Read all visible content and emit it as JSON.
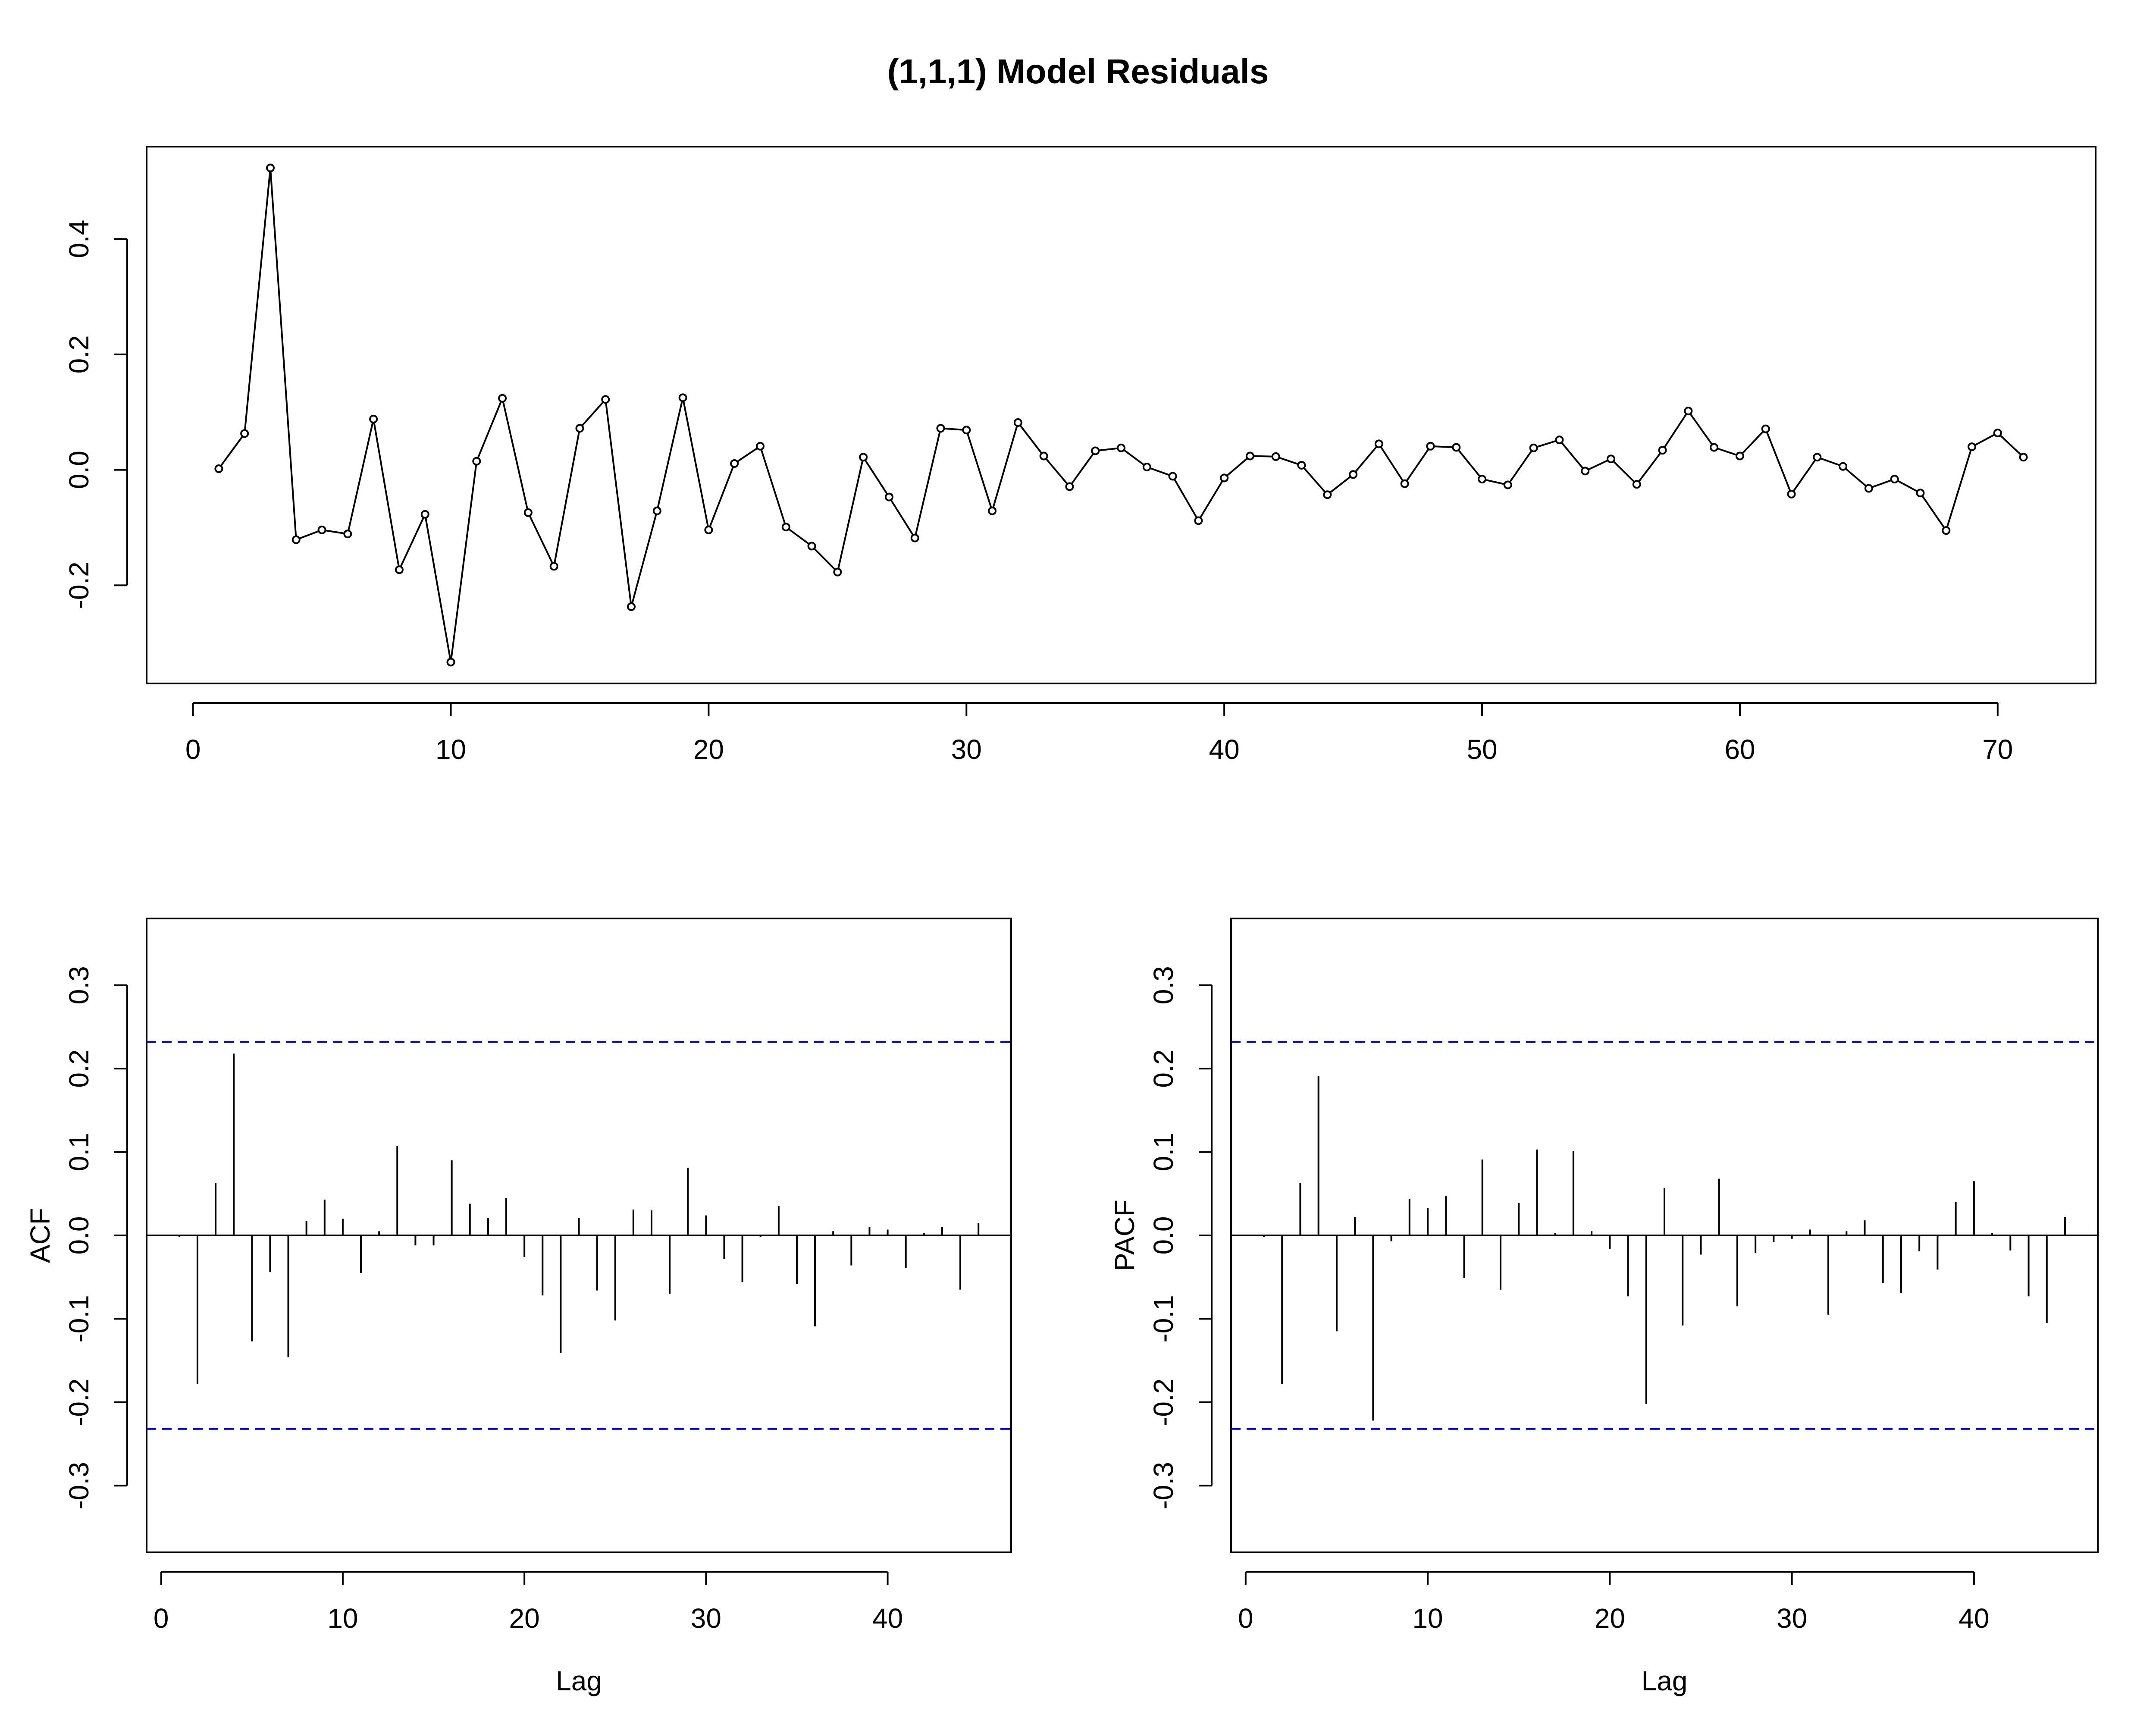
{
  "title": "(1,1,1) Model Residuals",
  "colors": {
    "ink": "#000000",
    "confidence": "#0000cc",
    "background": "#ffffff"
  },
  "chart_data": [
    {
      "id": "residuals",
      "type": "line",
      "markers": "open-circle",
      "title": "",
      "xlabel": "",
      "ylabel": "",
      "xlim": [
        -1.8,
        73.8
      ],
      "ylim": [
        -0.37,
        0.56
      ],
      "xticks": [
        0,
        10,
        20,
        30,
        40,
        50,
        60,
        70
      ],
      "yticks": [
        -0.2,
        0.0,
        0.2,
        0.4
      ],
      "ytick_labels": [
        "-0.2",
        "0.0",
        "0.2",
        "0.4"
      ],
      "grid": false,
      "x": [
        1,
        2,
        3,
        4,
        5,
        6,
        7,
        8,
        9,
        10,
        11,
        12,
        13,
        14,
        15,
        16,
        17,
        18,
        19,
        20,
        21,
        22,
        23,
        24,
        25,
        26,
        27,
        28,
        29,
        30,
        31,
        32,
        33,
        34,
        35,
        36,
        37,
        38,
        39,
        40,
        41,
        42,
        43,
        44,
        45,
        46,
        47,
        48,
        49,
        50,
        51,
        52,
        53,
        54,
        55,
        56,
        57,
        58,
        59,
        60,
        61,
        62,
        63,
        64,
        65,
        66,
        67,
        68,
        69,
        70,
        71
      ],
      "y": [
        0.002,
        0.063,
        0.523,
        -0.121,
        -0.104,
        -0.111,
        0.088,
        -0.173,
        -0.077,
        -0.333,
        0.015,
        0.124,
        -0.074,
        -0.167,
        0.072,
        0.122,
        -0.237,
        -0.071,
        0.125,
        -0.104,
        0.011,
        0.041,
        -0.099,
        -0.132,
        -0.177,
        0.022,
        -0.047,
        -0.118,
        0.072,
        0.069,
        -0.071,
        0.082,
        0.024,
        -0.029,
        0.033,
        0.038,
        0.005,
        -0.011,
        -0.088,
        -0.014,
        0.024,
        0.023,
        0.008,
        -0.043,
        -0.008,
        0.045,
        -0.024,
        0.041,
        0.039,
        -0.016,
        -0.026,
        0.038,
        0.052,
        -0.002,
        0.019,
        -0.025,
        0.034,
        0.102,
        0.039,
        0.024,
        0.071,
        -0.042,
        0.022,
        0.006,
        -0.032,
        -0.016,
        -0.04,
        -0.105,
        0.04,
        0.064,
        0.022
      ]
    },
    {
      "id": "acf",
      "type": "bar",
      "style": "spike",
      "title": "",
      "xlabel": "Lag",
      "ylabel": "ACF",
      "xlim": [
        -0.8,
        46.8
      ],
      "ylim": [
        -0.38,
        0.38
      ],
      "xticks": [
        0,
        10,
        20,
        30,
        40
      ],
      "yticks": [
        -0.3,
        -0.2,
        -0.1,
        0.0,
        0.1,
        0.2,
        0.3
      ],
      "ytick_labels": [
        "-0.3",
        "-0.2",
        "-0.1",
        "0.0",
        "0.1",
        "0.2",
        "0.3"
      ],
      "confidence": [
        0.232,
        -0.232
      ],
      "grid": false,
      "x": [
        1,
        2,
        3,
        4,
        5,
        6,
        7,
        8,
        9,
        10,
        11,
        12,
        13,
        14,
        15,
        16,
        17,
        18,
        19,
        20,
        21,
        22,
        23,
        24,
        25,
        26,
        27,
        28,
        29,
        30,
        31,
        32,
        33,
        34,
        35,
        36,
        37,
        38,
        39,
        40,
        41,
        42,
        43,
        44,
        45
      ],
      "values": [
        -0.002,
        -0.178,
        0.063,
        0.218,
        -0.127,
        -0.044,
        -0.146,
        0.017,
        0.043,
        0.02,
        -0.045,
        0.005,
        0.107,
        -0.012,
        -0.012,
        0.09,
        0.038,
        0.021,
        0.045,
        -0.026,
        -0.072,
        -0.141,
        0.021,
        -0.066,
        -0.102,
        0.031,
        0.03,
        -0.07,
        0.081,
        0.024,
        -0.028,
        -0.056,
        -0.002,
        0.035,
        -0.058,
        -0.109,
        0.005,
        -0.036,
        0.01,
        0.007,
        -0.039,
        0.003,
        0.01,
        -0.065,
        0.015
      ]
    },
    {
      "id": "pacf",
      "type": "bar",
      "style": "spike",
      "title": "",
      "xlabel": "Lag",
      "ylabel": "PACF",
      "xlim": [
        -0.8,
        46.8
      ],
      "ylim": [
        -0.38,
        0.38
      ],
      "xticks": [
        0,
        10,
        20,
        30,
        40
      ],
      "yticks": [
        -0.3,
        -0.2,
        -0.1,
        0.0,
        0.1,
        0.2,
        0.3
      ],
      "ytick_labels": [
        "-0.3",
        "-0.2",
        "-0.1",
        "0.0",
        "0.1",
        "0.2",
        "0.3"
      ],
      "confidence": [
        0.232,
        -0.232
      ],
      "grid": false,
      "x": [
        1,
        2,
        3,
        4,
        5,
        6,
        7,
        8,
        9,
        10,
        11,
        12,
        13,
        14,
        15,
        16,
        17,
        18,
        19,
        20,
        21,
        22,
        23,
        24,
        25,
        26,
        27,
        28,
        29,
        30,
        31,
        32,
        33,
        34,
        35,
        36,
        37,
        38,
        39,
        40,
        41,
        42,
        43,
        44,
        45
      ],
      "values": [
        -0.002,
        -0.178,
        0.063,
        0.191,
        -0.115,
        0.022,
        -0.222,
        -0.007,
        0.044,
        0.033,
        0.047,
        -0.051,
        0.091,
        -0.065,
        0.039,
        0.103,
        0.003,
        0.101,
        0.005,
        -0.016,
        -0.073,
        -0.202,
        0.057,
        -0.108,
        -0.023,
        0.068,
        -0.085,
        -0.021,
        -0.008,
        -0.004,
        0.007,
        -0.095,
        0.005,
        0.018,
        -0.057,
        -0.069,
        -0.019,
        -0.041,
        0.04,
        0.065,
        0.003,
        -0.018,
        -0.073,
        -0.105,
        0.022
      ]
    }
  ]
}
